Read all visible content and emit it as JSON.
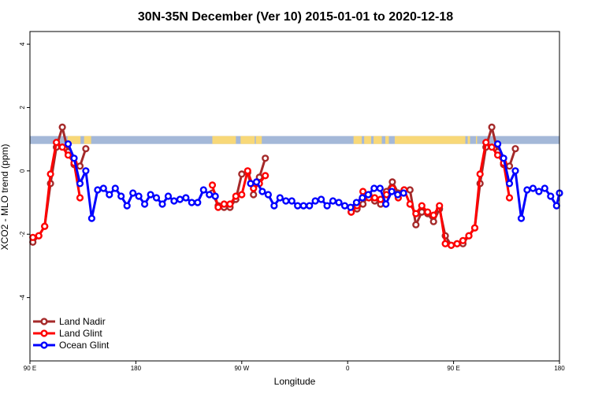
{
  "chart_data": {
    "type": "line",
    "title": "30N-35N December (Ver 10)   2015-01-01 to 2020-12-18",
    "xlabel": "Longitude",
    "ylabel": "XCO2 - MLO trend (ppm)",
    "xlim": [
      90,
      540
    ],
    "ylim": [
      -6,
      4.4
    ],
    "x_ticks": [
      {
        "value": 90,
        "label": "90 E"
      },
      {
        "value": 180,
        "label": "180"
      },
      {
        "value": 270,
        "label": "90 W"
      },
      {
        "value": 360,
        "label": "0"
      },
      {
        "value": 450,
        "label": "90 E"
      },
      {
        "value": 540,
        "label": "180"
      }
    ],
    "y_ticks": [
      {
        "value": 4,
        "label": "4"
      },
      {
        "value": 2,
        "label": "2"
      },
      {
        "value": 0,
        "label": "0"
      },
      {
        "value": -2,
        "label": "-2"
      },
      {
        "value": -4,
        "label": "-4"
      }
    ],
    "land_mask_band": {
      "y_range": [
        0.85,
        1.1
      ],
      "ocean_color": "#a4b8d8",
      "land_color": "#f8d878",
      "land_segments": [
        [
          122,
          133
        ],
        [
          136,
          142
        ],
        [
          245,
          265
        ],
        [
          269,
          281
        ],
        [
          282,
          287
        ],
        [
          365,
          372
        ],
        [
          374,
          380
        ],
        [
          382,
          389
        ],
        [
          392,
          395
        ],
        [
          400,
          460
        ],
        [
          462,
          464
        ],
        [
          469,
          470
        ]
      ]
    },
    "legend_position": "bottom-left",
    "series": [
      {
        "name": "Land Nadir",
        "color": "#a52a2a",
        "points": [
          [
            92.5,
            -2.25
          ],
          [
            97.5,
            -2.05
          ],
          [
            102.5,
            -1.75
          ],
          [
            107.5,
            -0.4
          ],
          [
            112.5,
            0.75
          ],
          [
            117.5,
            1.38
          ],
          [
            122.5,
            0.6
          ],
          [
            127.5,
            0.2
          ],
          [
            132.5,
            0.15
          ],
          [
            137.5,
            0.7
          ],
          null,
          [
            245,
            -0.7
          ],
          [
            250,
            -1.1
          ],
          [
            255,
            -1.15
          ],
          [
            260,
            -1.15
          ],
          [
            265,
            -0.9
          ],
          [
            270,
            -0.1
          ],
          [
            275,
            -0.05
          ],
          [
            280,
            -0.75
          ],
          [
            285,
            -0.2
          ],
          [
            290,
            0.4
          ],
          null,
          [
            363,
            -1.3
          ],
          [
            368,
            -1.2
          ],
          [
            373,
            -1.05
          ],
          [
            378,
            -0.75
          ],
          [
            383,
            -0.95
          ],
          [
            388,
            -1.05
          ],
          [
            393,
            -0.65
          ],
          [
            398,
            -0.35
          ],
          [
            403,
            -0.7
          ],
          [
            408,
            -0.6
          ],
          [
            413,
            -0.6
          ],
          [
            418,
            -1.7
          ],
          [
            423,
            -1.3
          ],
          [
            428,
            -1.35
          ],
          [
            433,
            -1.6
          ],
          [
            438,
            -1.2
          ],
          [
            443,
            -2.05
          ],
          [
            448,
            -2.35
          ],
          [
            453,
            -2.3
          ],
          [
            458,
            -2.3
          ],
          [
            463,
            -2.05
          ],
          [
            468,
            -1.8
          ],
          [
            472.5,
            -0.4
          ],
          [
            477.5,
            0.75
          ],
          [
            482.5,
            1.38
          ],
          [
            487.5,
            0.6
          ],
          [
            492.5,
            0.2
          ],
          [
            497.5,
            0.15
          ],
          [
            502.5,
            0.7
          ]
        ]
      },
      {
        "name": "Land Glint",
        "color": "#ff0000",
        "points": [
          [
            92.5,
            -2.1
          ],
          [
            97.5,
            -2.05
          ],
          [
            102.5,
            -1.75
          ],
          [
            107.5,
            -0.1
          ],
          [
            112.5,
            0.9
          ],
          [
            117.5,
            0.75
          ],
          [
            122.5,
            0.5
          ],
          [
            127.5,
            0.25
          ],
          [
            132.5,
            -0.85
          ],
          null,
          [
            245,
            -0.45
          ],
          [
            250,
            -1.15
          ],
          [
            255,
            -1.05
          ],
          [
            260,
            -1.05
          ],
          [
            265,
            -0.8
          ],
          [
            270,
            -0.75
          ],
          [
            275,
            0.0
          ],
          [
            280,
            -0.55
          ],
          [
            285,
            -0.4
          ],
          [
            290,
            -0.15
          ],
          null,
          [
            363,
            -1.3
          ],
          [
            368,
            -1.1
          ],
          [
            373,
            -0.65
          ],
          [
            378,
            -0.85
          ],
          [
            383,
            -0.85
          ],
          [
            388,
            -0.9
          ],
          [
            393,
            -0.75
          ],
          [
            398,
            -0.55
          ],
          [
            403,
            -0.85
          ],
          [
            408,
            -0.6
          ],
          [
            413,
            -1.05
          ],
          [
            418,
            -1.35
          ],
          [
            423,
            -1.1
          ],
          [
            428,
            -1.3
          ],
          [
            433,
            -1.4
          ],
          [
            438,
            -1.1
          ],
          [
            443,
            -2.3
          ],
          [
            448,
            -2.35
          ],
          [
            453,
            -2.3
          ],
          [
            458,
            -2.2
          ],
          [
            463,
            -2.05
          ],
          [
            468,
            -1.8
          ],
          [
            472.5,
            -0.1
          ],
          [
            477.5,
            0.9
          ],
          [
            482.5,
            0.75
          ],
          [
            487.5,
            0.5
          ],
          [
            492.5,
            0.25
          ],
          [
            497.5,
            -0.85
          ]
        ]
      },
      {
        "name": "Ocean Glint",
        "color": "#0000ff",
        "points": [
          [
            122.5,
            0.85
          ],
          [
            127.5,
            0.4
          ],
          [
            132.5,
            -0.4
          ],
          [
            137.5,
            0.0
          ],
          [
            142.5,
            -1.5
          ],
          [
            147.5,
            -0.6
          ],
          [
            152.5,
            -0.55
          ],
          [
            157.5,
            -0.75
          ],
          [
            162.5,
            -0.55
          ],
          [
            167.5,
            -0.8
          ],
          [
            172.5,
            -1.1
          ],
          [
            177.5,
            -0.7
          ],
          [
            182.5,
            -0.8
          ],
          [
            187.5,
            -1.05
          ],
          [
            192.5,
            -0.75
          ],
          [
            197.5,
            -0.85
          ],
          [
            202.5,
            -1.05
          ],
          [
            207.5,
            -0.8
          ],
          [
            212.5,
            -0.95
          ],
          [
            217.5,
            -0.9
          ],
          [
            222.5,
            -0.85
          ],
          [
            227.5,
            -1.0
          ],
          [
            232.5,
            -1.0
          ],
          [
            237.5,
            -0.6
          ],
          [
            242.5,
            -0.75
          ],
          [
            247.5,
            -0.8
          ],
          null,
          [
            277.5,
            -0.4
          ],
          [
            282.5,
            -0.35
          ],
          [
            287.5,
            -0.65
          ],
          [
            292.5,
            -0.75
          ],
          [
            297.5,
            -1.1
          ],
          [
            302.5,
            -0.85
          ],
          [
            307.5,
            -0.95
          ],
          [
            312.5,
            -0.95
          ],
          [
            317.5,
            -1.1
          ],
          [
            322.5,
            -1.1
          ],
          [
            327.5,
            -1.1
          ],
          [
            332.5,
            -0.95
          ],
          [
            337.5,
            -0.9
          ],
          [
            342.5,
            -1.1
          ],
          [
            347.5,
            -0.95
          ],
          [
            352.5,
            -1.0
          ],
          [
            357.5,
            -1.1
          ],
          [
            362.5,
            -1.15
          ],
          [
            367.5,
            -1.0
          ],
          [
            372.5,
            -0.85
          ],
          [
            377.5,
            -0.75
          ],
          [
            382.5,
            -0.55
          ],
          [
            387.5,
            -0.55
          ],
          [
            392.5,
            -1.05
          ],
          [
            397.5,
            -0.65
          ],
          [
            402.5,
            -0.75
          ],
          [
            407.5,
            -0.7
          ],
          null,
          [
            487.5,
            0.85
          ],
          [
            492.5,
            0.4
          ],
          [
            497.5,
            -0.4
          ],
          [
            502.5,
            0.0
          ],
          [
            507.5,
            -1.5
          ],
          [
            512.5,
            -0.6
          ],
          [
            517.5,
            -0.55
          ],
          [
            522.5,
            -0.65
          ],
          [
            527.5,
            -0.55
          ],
          [
            532.5,
            -0.8
          ],
          [
            537.5,
            -1.1
          ],
          [
            540,
            -0.7
          ]
        ]
      }
    ]
  }
}
